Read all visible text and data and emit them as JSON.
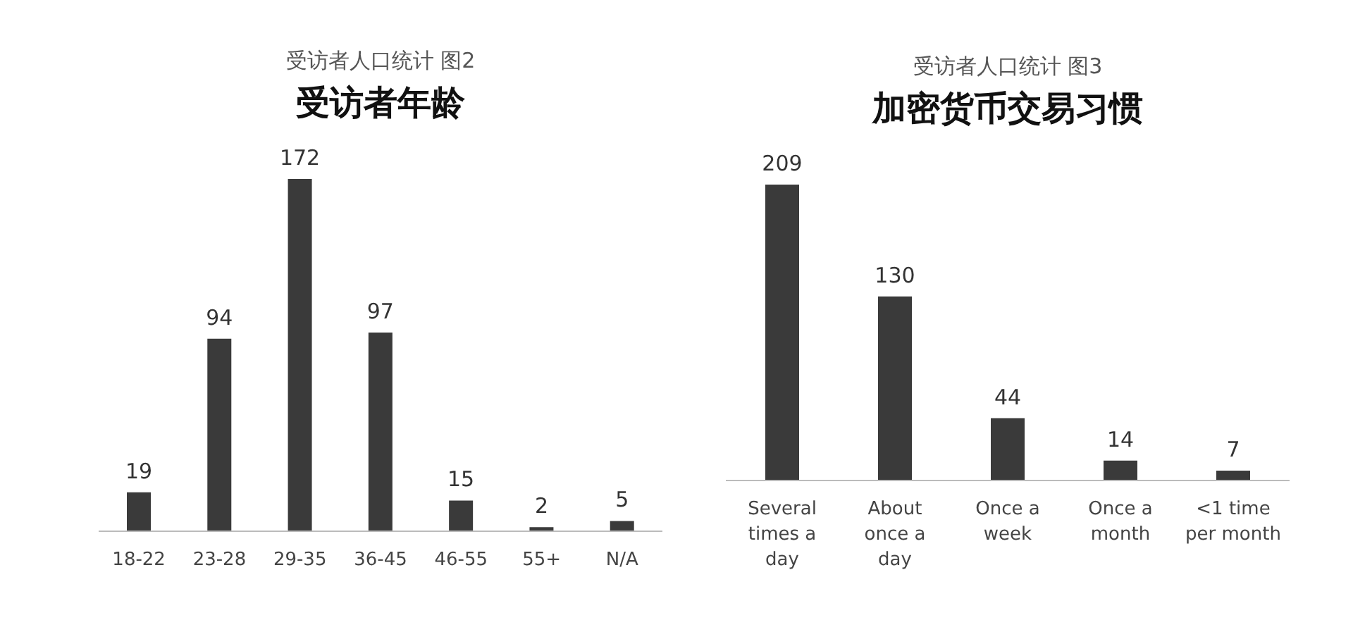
{
  "chart_data": [
    {
      "type": "bar",
      "subtitle": "受访者人口统计 图2",
      "title": "受访者年龄",
      "categories": [
        "18-22",
        "23-28",
        "29-35",
        "36-45",
        "46-55",
        "55+",
        "N/A"
      ],
      "values": [
        19,
        94,
        172,
        97,
        15,
        2,
        5
      ],
      "color": "#3a3a3a",
      "data_labels": true,
      "grid": false,
      "legend": false
    },
    {
      "type": "bar",
      "subtitle": "受访者人口统计 图3",
      "title": "加密货币交易习惯",
      "categories": [
        "Several times a day",
        "About once a day",
        "Once a week",
        "Once a month",
        "<1 time per month"
      ],
      "values": [
        209,
        130,
        44,
        14,
        7
      ],
      "color": "#3a3a3a",
      "data_labels": true,
      "grid": false,
      "legend": false
    }
  ]
}
